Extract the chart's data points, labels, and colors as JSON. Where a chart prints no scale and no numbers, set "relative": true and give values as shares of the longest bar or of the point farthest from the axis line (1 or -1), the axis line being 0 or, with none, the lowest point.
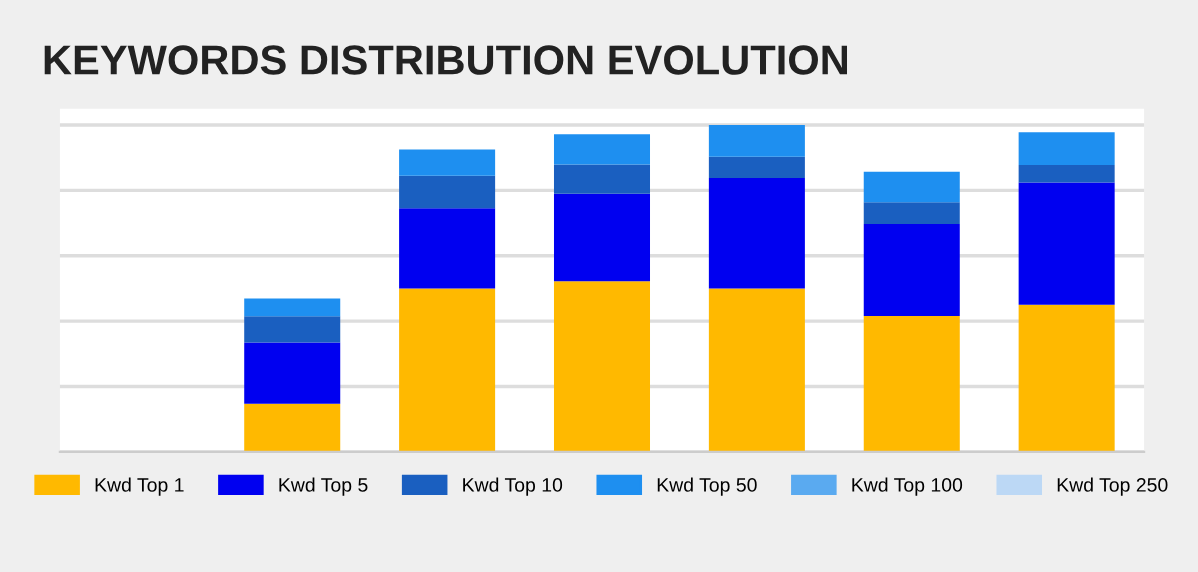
{
  "chart_data": {
    "type": "bar",
    "title": "KEYWORDS DISTRIBUTION EVOLUTION",
    "stacked": true,
    "relative": true,
    "grid": "y",
    "legend": "bottom",
    "categories": [
      null,
      null,
      null,
      null,
      null,
      null
    ],
    "series": [
      {
        "name": "Kwd Top 1",
        "color": "#ffb900",
        "values": [
          0.147,
          0.5,
          0.522,
          0.5,
          0.416,
          0.45
        ]
      },
      {
        "name": "Kwd Top 5",
        "color": "#0000f0",
        "values": [
          0.188,
          0.245,
          0.268,
          0.338,
          0.281,
          0.374
        ]
      },
      {
        "name": "Kwd Top 10",
        "color": "#1a5fc0",
        "values": [
          0.08,
          0.1,
          0.089,
          0.065,
          0.067,
          0.054
        ]
      },
      {
        "name": "Kwd Top 50",
        "color": "#1e8ff0",
        "values": [
          0.054,
          0.08,
          0.093,
          0.097,
          0.093,
          0.1
        ]
      },
      {
        "name": "Kwd Top 100",
        "color": "#5aaaf0",
        "values": [
          null,
          null,
          null,
          null,
          null,
          null
        ]
      },
      {
        "name": "Kwd Top 250",
        "color": "#bcd8f5",
        "values": [
          null,
          null,
          null,
          null,
          null,
          null
        ]
      }
    ]
  }
}
